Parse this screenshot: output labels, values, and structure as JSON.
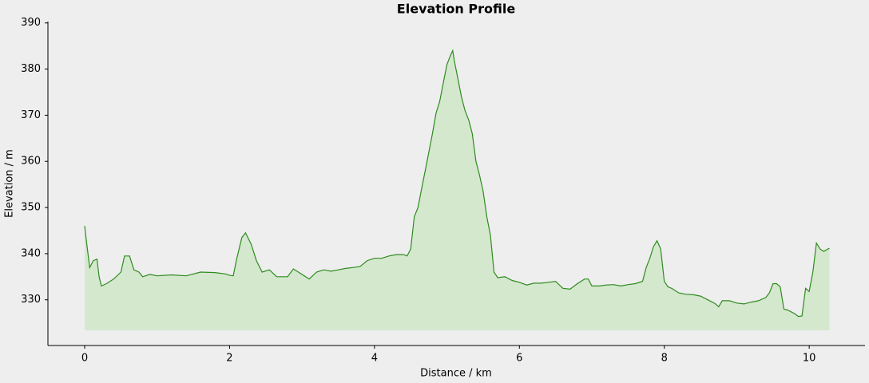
{
  "chart_data": {
    "type": "area",
    "title": "Elevation Profile",
    "x_label": "Distance / km",
    "y_label": "Elevation / m",
    "x": [
      0,
      0.03,
      0.07,
      0.12,
      0.17,
      0.2,
      0.23,
      0.3,
      0.4,
      0.5,
      0.55,
      0.62,
      0.68,
      0.75,
      0.8,
      0.9,
      1.0,
      1.2,
      1.4,
      1.6,
      1.8,
      1.95,
      2.0,
      2.05,
      2.1,
      2.17,
      2.22,
      2.3,
      2.37,
      2.45,
      2.55,
      2.65,
      2.8,
      2.88,
      3.0,
      3.1,
      3.2,
      3.3,
      3.4,
      3.5,
      3.6,
      3.7,
      3.8,
      3.9,
      4.0,
      4.1,
      4.2,
      4.3,
      4.4,
      4.45,
      4.5,
      4.55,
      4.6,
      4.65,
      4.7,
      4.75,
      4.8,
      4.85,
      4.9,
      4.95,
      5.0,
      5.05,
      5.08,
      5.1,
      5.15,
      5.2,
      5.25,
      5.3,
      5.35,
      5.4,
      5.45,
      5.5,
      5.55,
      5.6,
      5.65,
      5.7,
      5.8,
      5.9,
      6.0,
      6.1,
      6.2,
      6.3,
      6.4,
      6.5,
      6.6,
      6.7,
      6.8,
      6.9,
      6.95,
      7.0,
      7.1,
      7.2,
      7.3,
      7.4,
      7.5,
      7.6,
      7.7,
      7.75,
      7.8,
      7.85,
      7.9,
      7.95,
      8.0,
      8.05,
      8.1,
      8.2,
      8.3,
      8.4,
      8.5,
      8.6,
      8.7,
      8.75,
      8.8,
      8.9,
      9.0,
      9.1,
      9.2,
      9.3,
      9.4,
      9.45,
      9.5,
      9.55,
      9.6,
      9.65,
      9.7,
      9.8,
      9.85,
      9.9,
      9.95,
      10.0,
      10.05,
      10.1,
      10.15,
      10.2,
      10.28
    ],
    "series": [
      {
        "name": "Elevation",
        "color": "#2e8b1e",
        "fill": "#d4e8ce",
        "values": [
          346,
          342,
          337,
          338.5,
          338.8,
          335,
          333,
          333.5,
          334.5,
          336,
          339.5,
          339.5,
          336.5,
          336,
          335,
          335.5,
          335.2,
          335.4,
          335.2,
          336,
          335.9,
          335.6,
          335.3,
          335.2,
          339,
          343.5,
          344.5,
          342,
          338.5,
          336,
          336.5,
          335,
          335,
          336.7,
          335.5,
          334.5,
          336,
          336.5,
          336.2,
          336.5,
          336.8,
          337,
          337.2,
          338.5,
          339,
          339,
          339.5,
          339.8,
          339.8,
          339.5,
          341,
          348,
          350,
          354,
          358,
          362,
          366,
          370.5,
          373,
          377,
          381,
          383,
          384,
          382,
          378,
          374,
          371,
          369,
          366,
          360,
          357,
          353.5,
          348,
          344,
          336,
          334.8,
          335,
          334.2,
          333.8,
          333.2,
          333.6,
          333.6,
          333.8,
          334,
          332.5,
          332.3,
          333.5,
          334.5,
          334.5,
          333,
          333,
          333.2,
          333.3,
          333,
          333.3,
          333.5,
          334,
          337,
          339,
          341.5,
          342.8,
          341,
          334,
          332.8,
          332.5,
          331.5,
          331.2,
          331.1,
          330.8,
          330,
          329.2,
          328.5,
          329.8,
          329.8,
          329.3,
          329.1,
          329.5,
          329.8,
          330.5,
          331.5,
          333.5,
          333.5,
          332.8,
          328,
          327.8,
          327,
          326.4,
          326.5,
          332.5,
          331.8,
          336,
          342.3,
          341,
          340.5,
          341.2
        ]
      }
    ],
    "fill_baseline": 323.4,
    "xlim": [
      -0.507,
      10.77
    ],
    "xticks": [
      0,
      2,
      4,
      6,
      8,
      10
    ],
    "ylim": [
      320.1,
      390.3
    ],
    "yticks": [
      330,
      340,
      350,
      360,
      370,
      380,
      390
    ]
  }
}
